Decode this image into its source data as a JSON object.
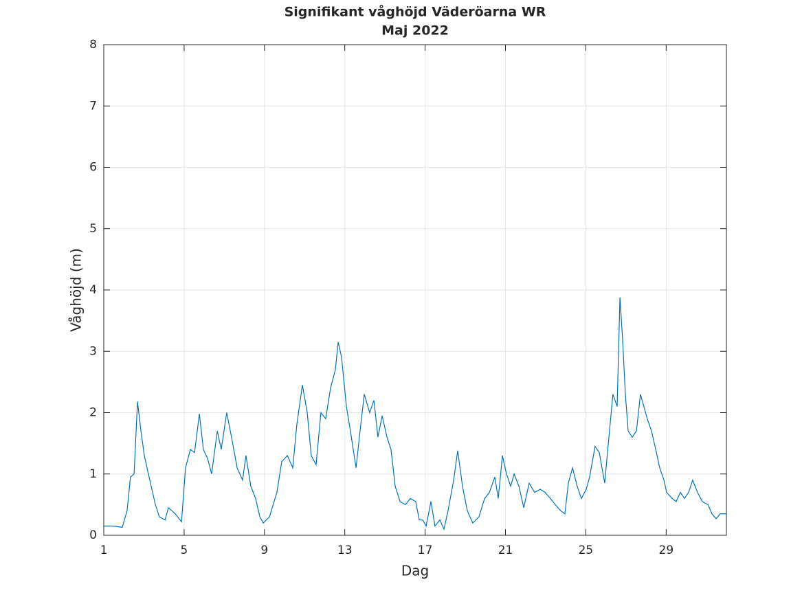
{
  "chart_data": {
    "type": "line",
    "title": "Signifikant våghöjd Väderöarna WR",
    "subtitle": "Maj 2022",
    "x_label": "Dag",
    "y_label": "Våghöjd (m)",
    "xlim": [
      1,
      32
    ],
    "ylim": [
      0,
      8
    ],
    "xticks": [
      1,
      5,
      9,
      13,
      17,
      21,
      25,
      29
    ],
    "yticks": [
      0,
      1,
      2,
      3,
      4,
      5,
      6,
      7,
      8
    ],
    "grid": true,
    "series": [
      {
        "color": "#0072bd",
        "x": [
          1.0,
          1.48,
          1.92,
          2.16,
          2.33,
          2.51,
          2.68,
          2.85,
          3.02,
          3.29,
          3.57,
          3.77,
          4.05,
          4.22,
          4.56,
          4.87,
          5.07,
          5.31,
          5.52,
          5.76,
          5.96,
          6.17,
          6.37,
          6.65,
          6.85,
          7.12,
          7.36,
          7.64,
          7.91,
          8.08,
          8.32,
          8.56,
          8.77,
          8.94,
          9.25,
          9.62,
          9.86,
          10.14,
          10.41,
          10.61,
          10.89,
          11.13,
          11.33,
          11.57,
          11.81,
          12.05,
          12.29,
          12.53,
          12.67,
          12.84,
          13.08,
          13.28,
          13.56,
          13.76,
          13.97,
          14.24,
          14.45,
          14.65,
          14.86,
          15.1,
          15.3,
          15.51,
          15.75,
          16.02,
          16.26,
          16.53,
          16.71,
          16.88,
          17.05,
          17.29,
          17.49,
          17.73,
          17.94,
          18.14,
          18.42,
          18.62,
          18.86,
          19.1,
          19.37,
          19.68,
          19.96,
          20.2,
          20.47,
          20.64,
          20.85,
          21.05,
          21.26,
          21.43,
          21.67,
          21.91,
          22.18,
          22.45,
          22.73,
          22.97,
          23.24,
          23.48,
          23.75,
          23.96,
          24.13,
          24.34,
          24.57,
          24.78,
          25.02,
          25.19,
          25.46,
          25.67,
          25.94,
          26.15,
          26.35,
          26.56,
          26.7,
          26.83,
          26.97,
          27.11,
          27.31,
          27.52,
          27.72,
          27.89,
          28.06,
          28.27,
          28.48,
          28.68,
          28.89,
          29.02,
          29.3,
          29.5,
          29.71,
          29.91,
          30.12,
          30.32,
          30.56,
          30.8,
          31.08,
          31.28,
          31.49,
          31.69,
          32.0
        ],
        "values": [
          0.15,
          0.15,
          0.13,
          0.4,
          0.95,
          1.0,
          2.18,
          1.7,
          1.3,
          0.9,
          0.5,
          0.3,
          0.25,
          0.45,
          0.35,
          0.22,
          1.1,
          1.4,
          1.35,
          1.98,
          1.4,
          1.25,
          1.0,
          1.7,
          1.4,
          2.0,
          1.6,
          1.1,
          0.9,
          1.3,
          0.8,
          0.6,
          0.3,
          0.2,
          0.3,
          0.7,
          1.2,
          1.3,
          1.1,
          1.8,
          2.45,
          2.0,
          1.3,
          1.15,
          2.0,
          1.9,
          2.4,
          2.7,
          3.15,
          2.9,
          2.1,
          1.7,
          1.1,
          1.7,
          2.3,
          2.0,
          2.2,
          1.6,
          1.95,
          1.6,
          1.4,
          0.8,
          0.55,
          0.5,
          0.6,
          0.55,
          0.25,
          0.25,
          0.15,
          0.55,
          0.15,
          0.25,
          0.1,
          0.4,
          0.9,
          1.38,
          0.8,
          0.4,
          0.2,
          0.3,
          0.6,
          0.7,
          0.95,
          0.6,
          1.3,
          1.0,
          0.8,
          1.0,
          0.8,
          0.45,
          0.85,
          0.7,
          0.75,
          0.7,
          0.6,
          0.5,
          0.4,
          0.35,
          0.85,
          1.1,
          0.8,
          0.6,
          0.75,
          0.95,
          1.45,
          1.35,
          0.85,
          1.6,
          2.3,
          2.1,
          3.88,
          3.2,
          2.3,
          1.7,
          1.6,
          1.7,
          2.3,
          2.1,
          1.9,
          1.7,
          1.4,
          1.1,
          0.9,
          0.7,
          0.6,
          0.55,
          0.7,
          0.6,
          0.7,
          0.9,
          0.7,
          0.55,
          0.5,
          0.35,
          0.27,
          0.35,
          0.35
        ]
      }
    ]
  }
}
